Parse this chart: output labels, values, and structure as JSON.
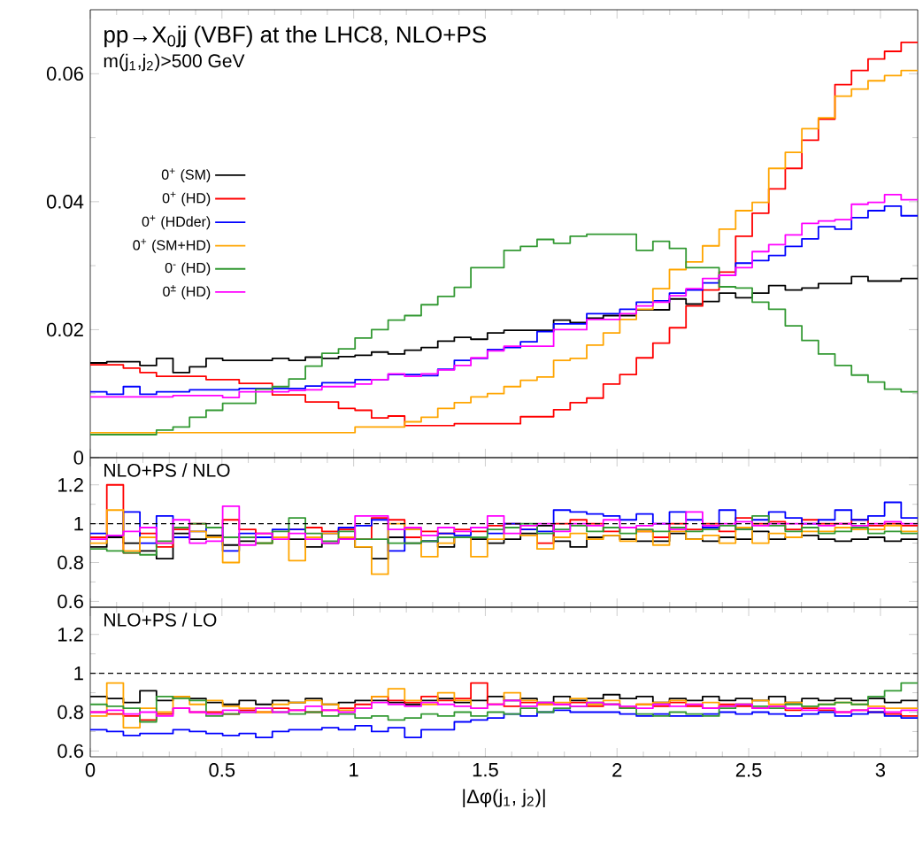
{
  "chart_data": [
    {
      "type": "histogram",
      "title": "pp→X$_{0}$jj (VBF) at the LHC8, NLO+PS",
      "subtitle": "m(j$_{1}$,j$_{2}$)>500 GeV",
      "bins": [
        0,
        0.0628,
        0.1257,
        0.1885,
        0.2513,
        0.3142,
        0.377,
        0.4398,
        0.5027,
        0.5655,
        0.6283,
        0.6912,
        0.754,
        0.8168,
        0.8796,
        0.9425,
        1.0053,
        1.0681,
        1.131,
        1.1938,
        1.2566,
        1.3195,
        1.3823,
        1.4451,
        1.508,
        1.5708,
        1.6336,
        1.6965,
        1.7593,
        1.8221,
        1.885,
        1.9478,
        2.0106,
        2.0735,
        2.1363,
        2.1991,
        2.2619,
        2.3248,
        2.3876,
        2.4504,
        2.5133,
        2.5761,
        2.6389,
        2.7018,
        2.7646,
        2.8274,
        2.8903,
        2.9531,
        3.0159,
        3.0788,
        3.1416
      ],
      "xlim": [
        0,
        3.1416
      ],
      "ylim": [
        0,
        0.07
      ],
      "xticks": [
        0,
        0.5,
        1,
        1.5,
        2,
        2.5,
        3
      ],
      "yticks": [
        0,
        0.02,
        0.04,
        0.06
      ],
      "tick_labels": "y",
      "legend": "left",
      "series": [
        {
          "name": "0$^{+}$ (SM)",
          "color": "#000000",
          "values": [
            0.0148,
            0.015,
            0.015,
            0.0144,
            0.0155,
            0.0133,
            0.0142,
            0.0155,
            0.0152,
            0.0152,
            0.0152,
            0.0155,
            0.0152,
            0.0157,
            0.0155,
            0.0158,
            0.016,
            0.0165,
            0.0162,
            0.0168,
            0.0172,
            0.0182,
            0.0188,
            0.0185,
            0.0195,
            0.0199,
            0.0199,
            0.0199,
            0.0215,
            0.0211,
            0.0218,
            0.0222,
            0.0222,
            0.0231,
            0.0231,
            0.0248,
            0.024,
            0.0244,
            0.0257,
            0.025,
            0.0257,
            0.0269,
            0.0262,
            0.0265,
            0.0272,
            0.0272,
            0.0283,
            0.0276,
            0.0276,
            0.028
          ]
        },
        {
          "name": "0$^{+}$ (HD)",
          "color": "#ff0000",
          "values": [
            0.0145,
            0.0145,
            0.014,
            0.0133,
            0.0127,
            0.0127,
            0.0127,
            0.0122,
            0.0122,
            0.0116,
            0.0116,
            0.0098,
            0.0098,
            0.0087,
            0.0087,
            0.0077,
            0.0074,
            0.0062,
            0.0065,
            0.005,
            0.005,
            0.005,
            0.0053,
            0.0053,
            0.0053,
            0.0053,
            0.0064,
            0.0064,
            0.0075,
            0.0086,
            0.0093,
            0.0115,
            0.013,
            0.0156,
            0.0179,
            0.0203,
            0.0237,
            0.0262,
            0.029,
            0.0346,
            0.0382,
            0.042,
            0.0452,
            0.0496,
            0.0529,
            0.0583,
            0.0605,
            0.0623,
            0.0635,
            0.0649
          ]
        },
        {
          "name": "0$^{+}$ (HDder)",
          "color": "#0000ff",
          "values": [
            0.0103,
            0.0099,
            0.0111,
            0.0099,
            0.0103,
            0.0103,
            0.0106,
            0.0106,
            0.0106,
            0.0108,
            0.0108,
            0.0108,
            0.0108,
            0.0112,
            0.0117,
            0.0117,
            0.0122,
            0.0122,
            0.013,
            0.013,
            0.0128,
            0.0138,
            0.0152,
            0.0155,
            0.0169,
            0.0172,
            0.0181,
            0.0197,
            0.0209,
            0.0209,
            0.0225,
            0.0225,
            0.0232,
            0.0243,
            0.0245,
            0.0257,
            0.0262,
            0.0273,
            0.0285,
            0.0304,
            0.0308,
            0.0316,
            0.033,
            0.0342,
            0.0361,
            0.0357,
            0.0375,
            0.0386,
            0.0393,
            0.0378
          ]
        },
        {
          "name": "0$^{+}$ (SM+HD)",
          "color": "#ffa500",
          "values": [
            0.0039,
            0.0039,
            0.0039,
            0.0039,
            0.0039,
            0.0039,
            0.0039,
            0.0039,
            0.0039,
            0.0039,
            0.0039,
            0.0039,
            0.0039,
            0.0039,
            0.0039,
            0.0039,
            0.0048,
            0.0048,
            0.0048,
            0.0056,
            0.0063,
            0.0077,
            0.0086,
            0.0095,
            0.01,
            0.0111,
            0.0121,
            0.0126,
            0.0152,
            0.0155,
            0.0176,
            0.0195,
            0.0216,
            0.0232,
            0.0264,
            0.0294,
            0.0306,
            0.0331,
            0.0357,
            0.0386,
            0.0399,
            0.0452,
            0.0477,
            0.0514,
            0.0531,
            0.0565,
            0.0576,
            0.0589,
            0.0597,
            0.0605
          ]
        },
        {
          "name": "0$^{-}$ (HD)",
          "color": "#339933",
          "values": [
            0.0036,
            0.0036,
            0.0036,
            0.0036,
            0.0043,
            0.0048,
            0.0063,
            0.0074,
            0.0085,
            0.0085,
            0.0107,
            0.0111,
            0.0123,
            0.0143,
            0.0163,
            0.017,
            0.0187,
            0.02,
            0.0215,
            0.0222,
            0.0239,
            0.0252,
            0.0266,
            0.0297,
            0.0297,
            0.0324,
            0.033,
            0.0341,
            0.0335,
            0.0346,
            0.0349,
            0.0349,
            0.0349,
            0.0324,
            0.0338,
            0.0327,
            0.0297,
            0.0297,
            0.0267,
            0.0265,
            0.0243,
            0.0232,
            0.0206,
            0.0183,
            0.0162,
            0.0144,
            0.0129,
            0.0118,
            0.0107,
            0.0103
          ]
        },
        {
          "name": "0$^{±}$ (HD)",
          "color": "#ff00ff",
          "values": [
            0.0095,
            0.0095,
            0.0095,
            0.0095,
            0.0095,
            0.0097,
            0.0097,
            0.0097,
            0.0094,
            0.0103,
            0.0103,
            0.0103,
            0.0105,
            0.0106,
            0.0111,
            0.0111,
            0.0115,
            0.0122,
            0.0131,
            0.0127,
            0.0131,
            0.0137,
            0.0144,
            0.0156,
            0.0167,
            0.0174,
            0.0174,
            0.0174,
            0.02,
            0.02,
            0.0216,
            0.0216,
            0.0225,
            0.0237,
            0.0243,
            0.0253,
            0.0264,
            0.028,
            0.0285,
            0.0297,
            0.0322,
            0.0333,
            0.0348,
            0.0366,
            0.037,
            0.0372,
            0.0396,
            0.0399,
            0.0411,
            0.0403
          ]
        }
      ]
    },
    {
      "type": "histogram",
      "annotations": [
        "NLO+PS / NLO"
      ],
      "bins": [
        0,
        0.0628,
        0.1257,
        0.1885,
        0.2513,
        0.3142,
        0.377,
        0.4398,
        0.5027,
        0.5655,
        0.6283,
        0.6912,
        0.754,
        0.8168,
        0.8796,
        0.9425,
        1.0053,
        1.0681,
        1.131,
        1.1938,
        1.2566,
        1.3195,
        1.3823,
        1.4451,
        1.508,
        1.5708,
        1.6336,
        1.6965,
        1.7593,
        1.8221,
        1.885,
        1.9478,
        2.0106,
        2.0735,
        2.1363,
        2.1991,
        2.2619,
        2.3248,
        2.3876,
        2.4504,
        2.5133,
        2.5761,
        2.6389,
        2.7018,
        2.7646,
        2.8274,
        2.8903,
        2.9531,
        3.0159,
        3.0788,
        3.1416
      ],
      "xlim": [
        0,
        3.1416
      ],
      "ylim": [
        0.57,
        1.34
      ],
      "xticks": [
        0,
        0.5,
        1,
        1.5,
        2,
        2.5,
        3
      ],
      "yticks": [
        0.6,
        0.8,
        1,
        1.2
      ],
      "tick_labels": "y",
      "ref_lines": [
        {
          "axis": "y",
          "value": 1,
          "color": "#000000",
          "line_style": "dashed"
        }
      ],
      "series": [
        {
          "color": "#000000",
          "values": [
            0.88,
            0.93,
            0.9,
            0.86,
            0.82,
            0.95,
            0.92,
            0.94,
            0.89,
            0.91,
            0.9,
            0.93,
            0.92,
            0.88,
            0.9,
            0.92,
            0.88,
            0.82,
            0.93,
            0.9,
            0.91,
            0.88,
            0.93,
            0.92,
            0.9,
            0.92,
            0.95,
            0.99,
            0.91,
            0.88,
            0.93,
            0.94,
            0.92,
            0.91,
            0.91,
            0.95,
            0.92,
            0.91,
            0.93,
            0.92,
            0.96,
            0.92,
            0.93,
            0.94,
            0.92,
            0.91,
            0.92,
            0.93,
            0.91,
            0.92
          ]
        },
        {
          "color": "#ff0000",
          "values": [
            0.93,
            1.2,
            0.85,
            0.95,
            0.88,
            0.97,
            1.0,
            0.98,
            1.02,
            0.97,
            0.95,
            0.93,
            0.97,
            0.98,
            0.96,
            0.97,
            0.92,
            1.03,
            1.02,
            0.93,
            0.96,
            0.95,
            0.97,
            0.96,
            0.99,
            1.0,
            0.97,
            0.9,
            1.0,
            1.02,
            1.0,
            0.96,
            0.98,
            0.96,
            0.93,
            1.0,
            0.97,
            1.0,
            0.96,
            1.03,
            1.0,
            1.01,
            0.97,
            1.02,
            1.0,
            1.0,
            1.02,
            0.99,
            1.0,
            0.99
          ]
        },
        {
          "color": "#0000ff",
          "values": [
            0.95,
            0.94,
            1.06,
            0.9,
            1.04,
            0.93,
            0.96,
            0.98,
            0.86,
            0.95,
            0.93,
            0.97,
            0.97,
            0.93,
            0.95,
            0.98,
            0.99,
            1.02,
            0.86,
            0.97,
            0.91,
            0.95,
            0.94,
            0.98,
            0.95,
            1.0,
            0.97,
            0.96,
            1.07,
            1.06,
            1.05,
            1.04,
            1.02,
            1.05,
            1.0,
            1.06,
            1.02,
            0.98,
            1.07,
            0.97,
            1.02,
            1.06,
            1.03,
            1.0,
            1.02,
            1.07,
            1.02,
            1.04,
            1.11,
            1.03
          ]
        },
        {
          "color": "#ffa500",
          "values": [
            0.9,
            1.07,
            0.86,
            0.93,
            0.9,
            0.98,
            0.96,
            0.93,
            0.8,
            0.93,
            0.9,
            0.93,
            0.81,
            0.93,
            0.95,
            0.93,
            0.88,
            0.74,
            1.0,
            0.97,
            0.83,
            0.9,
            0.93,
            0.83,
            0.92,
            0.98,
            0.94,
            0.87,
            0.93,
            0.95,
            0.92,
            0.94,
            0.91,
            0.96,
            0.89,
            0.96,
            0.92,
            0.94,
            0.9,
            0.98,
            0.9,
            0.95,
            0.93,
            0.96,
            0.96,
            0.98,
            0.97,
            0.97,
            0.99,
            0.96
          ]
        },
        {
          "color": "#339933",
          "values": [
            0.87,
            0.86,
            0.85,
            0.84,
            0.91,
            0.98,
            1.0,
            0.98,
            0.93,
            0.93,
            0.9,
            0.96,
            1.03,
            0.95,
            0.91,
            0.96,
            0.92,
            0.92,
            0.9,
            0.9,
            0.91,
            0.93,
            0.93,
            0.93,
            0.97,
            0.98,
            1.0,
            0.95,
            0.97,
            0.99,
            0.96,
            0.98,
            0.95,
            0.97,
            0.96,
            0.98,
            0.96,
            0.97,
            0.99,
            0.97,
            1.04,
            0.99,
            0.96,
            0.98,
            0.95,
            0.96,
            0.98,
            0.95,
            0.96,
            0.95
          ]
        },
        {
          "color": "#ff00ff",
          "values": [
            0.92,
            0.94,
            0.96,
            0.98,
            0.9,
            1.02,
            0.9,
            0.91,
            1.09,
            0.89,
            0.95,
            0.92,
            0.95,
            0.92,
            0.9,
            0.92,
            1.04,
            1.04,
            0.97,
            0.98,
            0.94,
            0.98,
            0.96,
            0.98,
            1.04,
            0.95,
            0.99,
            1.0,
            0.96,
            1.0,
            0.99,
            1.02,
            0.98,
            0.99,
            1.0,
            0.97,
            1.06,
            0.99,
            1.0,
            1.01,
            0.99,
            1.0,
            1.0,
            1.0,
            0.99,
            1.0,
            0.99,
            1.0,
            1.01,
            1.0
          ]
        }
      ]
    },
    {
      "type": "histogram",
      "annotations": [
        "NLO+PS / LO"
      ],
      "xlabel": "|Δφ(j$_{1}$, j$_{2}$)|",
      "bins": [
        0,
        0.0628,
        0.1257,
        0.1885,
        0.2513,
        0.3142,
        0.377,
        0.4398,
        0.5027,
        0.5655,
        0.6283,
        0.6912,
        0.754,
        0.8168,
        0.8796,
        0.9425,
        1.0053,
        1.0681,
        1.131,
        1.1938,
        1.2566,
        1.3195,
        1.3823,
        1.4451,
        1.508,
        1.5708,
        1.6336,
        1.6965,
        1.7593,
        1.8221,
        1.885,
        1.9478,
        2.0106,
        2.0735,
        2.1363,
        2.1991,
        2.2619,
        2.3248,
        2.3876,
        2.4504,
        2.5133,
        2.5761,
        2.6389,
        2.7018,
        2.7646,
        2.8274,
        2.8903,
        2.9531,
        3.0159,
        3.0788,
        3.1416
      ],
      "xlim": [
        0,
        3.1416
      ],
      "ylim": [
        0.57,
        1.34
      ],
      "xticks": [
        0,
        0.5,
        1,
        1.5,
        2,
        2.5,
        3
      ],
      "yticks": [
        0.6,
        0.8,
        1,
        1.2
      ],
      "ref_lines": [
        {
          "axis": "y",
          "value": 1,
          "color": "#000000",
          "line_style": "dashed"
        }
      ],
      "series": [
        {
          "color": "#000000",
          "values": [
            0.88,
            0.87,
            0.85,
            0.91,
            0.86,
            0.88,
            0.87,
            0.85,
            0.84,
            0.86,
            0.84,
            0.86,
            0.85,
            0.87,
            0.84,
            0.85,
            0.86,
            0.86,
            0.85,
            0.84,
            0.86,
            0.87,
            0.85,
            0.86,
            0.88,
            0.86,
            0.87,
            0.85,
            0.88,
            0.86,
            0.87,
            0.89,
            0.87,
            0.88,
            0.85,
            0.87,
            0.86,
            0.88,
            0.86,
            0.87,
            0.86,
            0.88,
            0.85,
            0.87,
            0.86,
            0.87,
            0.86,
            0.87,
            0.85,
            0.86
          ]
        },
        {
          "color": "#ff0000",
          "values": [
            0.8,
            0.79,
            0.78,
            0.76,
            0.79,
            0.82,
            0.8,
            0.8,
            0.79,
            0.81,
            0.8,
            0.82,
            0.81,
            0.8,
            0.81,
            0.82,
            0.84,
            0.88,
            0.86,
            0.85,
            0.88,
            0.86,
            0.87,
            0.95,
            0.84,
            0.83,
            0.85,
            0.84,
            0.84,
            0.85,
            0.83,
            0.84,
            0.82,
            0.84,
            0.83,
            0.85,
            0.83,
            0.82,
            0.84,
            0.83,
            0.82,
            0.83,
            0.81,
            0.82,
            0.81,
            0.8,
            0.81,
            0.8,
            0.79,
            0.78
          ]
        },
        {
          "color": "#0000ff",
          "values": [
            0.71,
            0.7,
            0.68,
            0.69,
            0.69,
            0.71,
            0.7,
            0.69,
            0.68,
            0.69,
            0.67,
            0.7,
            0.71,
            0.71,
            0.72,
            0.71,
            0.73,
            0.7,
            0.72,
            0.67,
            0.71,
            0.71,
            0.75,
            0.76,
            0.77,
            0.79,
            0.78,
            0.8,
            0.81,
            0.8,
            0.8,
            0.8,
            0.79,
            0.78,
            0.79,
            0.78,
            0.78,
            0.79,
            0.8,
            0.79,
            0.8,
            0.79,
            0.78,
            0.79,
            0.8,
            0.78,
            0.79,
            0.8,
            0.78,
            0.77
          ]
        },
        {
          "color": "#ffa500",
          "values": [
            0.78,
            0.95,
            0.72,
            0.82,
            0.8,
            0.88,
            0.84,
            0.86,
            0.83,
            0.82,
            0.8,
            0.84,
            0.85,
            0.86,
            0.84,
            0.81,
            0.82,
            0.88,
            0.92,
            0.86,
            0.84,
            0.9,
            0.86,
            0.82,
            0.84,
            0.9,
            0.86,
            0.84,
            0.85,
            0.87,
            0.84,
            0.86,
            0.83,
            0.84,
            0.85,
            0.86,
            0.84,
            0.85,
            0.83,
            0.84,
            0.86,
            0.84,
            0.85,
            0.83,
            0.84,
            0.85,
            0.84,
            0.83,
            0.82,
            0.82
          ]
        },
        {
          "color": "#339933",
          "values": [
            0.84,
            0.83,
            0.82,
            0.75,
            0.88,
            0.87,
            0.86,
            0.78,
            0.79,
            0.8,
            0.82,
            0.8,
            0.79,
            0.8,
            0.78,
            0.79,
            0.77,
            0.78,
            0.76,
            0.77,
            0.79,
            0.78,
            0.8,
            0.78,
            0.8,
            0.79,
            0.82,
            0.8,
            0.82,
            0.83,
            0.85,
            0.84,
            0.82,
            0.79,
            0.78,
            0.8,
            0.79,
            0.78,
            0.82,
            0.84,
            0.83,
            0.82,
            0.84,
            0.83,
            0.84,
            0.85,
            0.84,
            0.88,
            0.91,
            0.95
          ]
        },
        {
          "color": "#ff00ff",
          "values": [
            0.8,
            0.81,
            0.79,
            0.8,
            0.78,
            0.82,
            0.8,
            0.79,
            0.81,
            0.8,
            0.82,
            0.8,
            0.81,
            0.83,
            0.81,
            0.8,
            0.82,
            0.85,
            0.84,
            0.83,
            0.85,
            0.84,
            0.83,
            0.82,
            0.84,
            0.86,
            0.83,
            0.85,
            0.84,
            0.83,
            0.85,
            0.84,
            0.83,
            0.82,
            0.84,
            0.83,
            0.84,
            0.82,
            0.83,
            0.84,
            0.82,
            0.83,
            0.82,
            0.81,
            0.82,
            0.8,
            0.81,
            0.82,
            0.8,
            0.81
          ]
        }
      ]
    }
  ]
}
